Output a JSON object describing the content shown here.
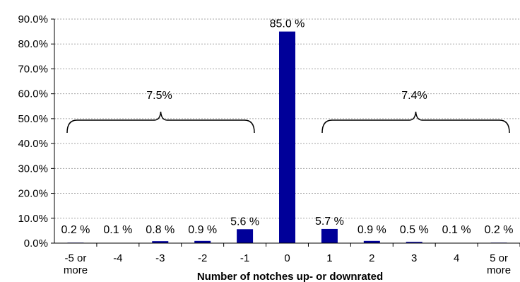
{
  "chart_data": {
    "type": "bar",
    "xlabel": "Number of notches up- or downrated",
    "ylabel": "",
    "ylim": [
      0,
      90
    ],
    "yticks": [
      "0.0%",
      "10.0%",
      "20.0%",
      "30.0%",
      "40.0%",
      "50.0%",
      "60.0%",
      "70.0%",
      "80.0%",
      "90.0%"
    ],
    "grid": "horizontal dashed",
    "bar_color": "#000099",
    "categories": [
      [
        "-5 or",
        "more"
      ],
      [
        "-4"
      ],
      [
        "-3"
      ],
      [
        "-2"
      ],
      [
        "-1"
      ],
      [
        "0"
      ],
      [
        "1"
      ],
      [
        "2"
      ],
      [
        "3"
      ],
      [
        "4"
      ],
      [
        "5 or",
        "more"
      ]
    ],
    "values": [
      0.2,
      0.1,
      0.8,
      0.9,
      5.6,
      85.0,
      5.7,
      0.9,
      0.5,
      0.1,
      0.2
    ],
    "data_labels": [
      "0.2 %",
      "0.1 %",
      "0.8 %",
      "0.9 %",
      "5.6 %",
      "85.0 %",
      "5.7 %",
      "0.9 %",
      "0.5 %",
      "0.1 %",
      "0.2 %"
    ],
    "annotations": [
      {
        "text": "7.5%",
        "spans": "-5 or more to -1"
      },
      {
        "text": "7.4%",
        "spans": "1 to 5 or more"
      }
    ]
  }
}
